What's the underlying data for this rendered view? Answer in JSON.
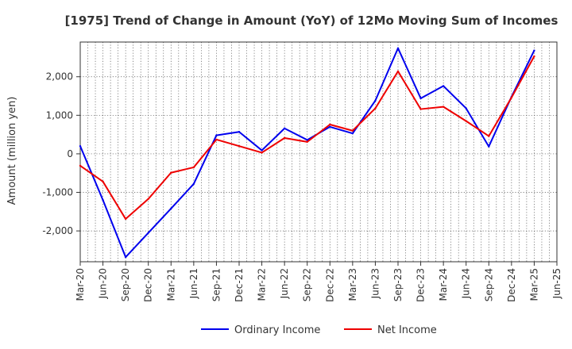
{
  "chart_data": {
    "type": "line",
    "title": "[1975]  Trend of Change in Amount (YoY) of 12Mo Moving Sum of Incomes",
    "xlabel": "",
    "ylabel": "Amount (million yen)",
    "categories": [
      "Mar-20",
      "Jun-20",
      "Sep-20",
      "Dec-20",
      "Mar-21",
      "Jun-21",
      "Sep-21",
      "Dec-21",
      "Mar-22",
      "Jun-22",
      "Sep-22",
      "Dec-22",
      "Mar-23",
      "Jun-23",
      "Sep-23",
      "Dec-23",
      "Mar-24",
      "Jun-24",
      "Sep-24",
      "Dec-24",
      "Mar-25",
      "Jun-25"
    ],
    "yticks": [
      -2000,
      -1000,
      0,
      1000,
      2000
    ],
    "ytick_labels": [
      "-2,000",
      "-1,000",
      "0",
      "1,000",
      "2,000"
    ],
    "ylim": [
      -2800,
      2900
    ],
    "grid": true,
    "legend_position": "bottom",
    "series": [
      {
        "name": "Ordinary Income",
        "color": "#0000ee",
        "values": [
          200,
          -1200,
          -2680,
          -2050,
          -1420,
          -780,
          480,
          570,
          90,
          660,
          360,
          700,
          530,
          1380,
          2740,
          1440,
          1760,
          1180,
          190,
          1480,
          2680,
          null
        ]
      },
      {
        "name": "Net Income",
        "color": "#ee0000",
        "values": [
          -310,
          -720,
          -1690,
          -1170,
          -490,
          -350,
          370,
          200,
          30,
          410,
          310,
          760,
          600,
          1180,
          2140,
          1160,
          1220,
          850,
          460,
          1460,
          2530,
          null
        ]
      }
    ]
  }
}
